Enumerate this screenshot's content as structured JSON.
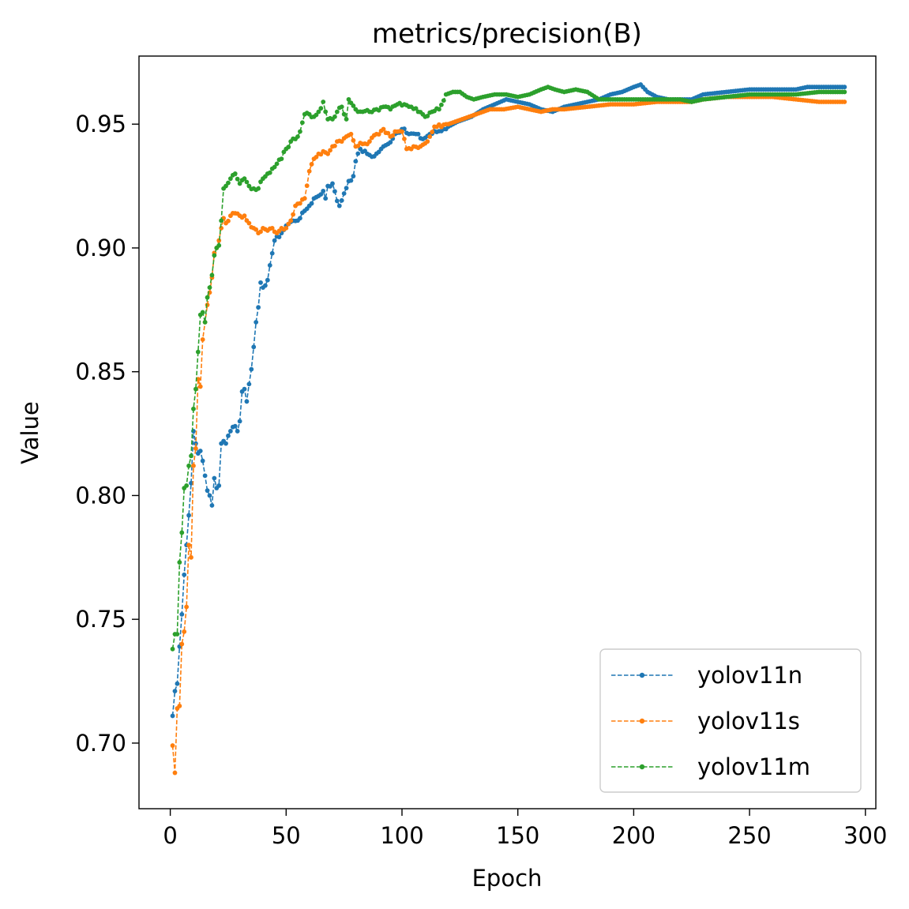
{
  "chart_data": {
    "type": "line",
    "title": "metrics/precision(B)",
    "xlabel": "Epoch",
    "ylabel": "Value",
    "xlim": [
      -13.5,
      304.5
    ],
    "ylim": [
      0.6735,
      0.9775
    ],
    "xticks": [
      0,
      50,
      100,
      150,
      200,
      250,
      300
    ],
    "xtick_labels": [
      "0",
      "50",
      "100",
      "150",
      "200",
      "250",
      "300"
    ],
    "yticks": [
      0.7,
      0.75,
      0.8,
      0.85,
      0.9,
      0.95
    ],
    "ytick_labels": [
      "0.70",
      "0.75",
      "0.80",
      "0.85",
      "0.90",
      "0.95"
    ],
    "grid": false,
    "legend_position": "lower-right",
    "series": [
      {
        "name": "yolov11n",
        "color": "#1f77b4",
        "keypoints": [
          [
            1,
            0.711
          ],
          [
            2,
            0.721
          ],
          [
            3,
            0.724
          ],
          [
            4,
            0.739
          ],
          [
            5,
            0.752
          ],
          [
            6,
            0.768
          ],
          [
            7,
            0.78
          ],
          [
            8,
            0.792
          ],
          [
            9,
            0.805
          ],
          [
            10,
            0.826
          ],
          [
            11,
            0.821
          ],
          [
            12,
            0.817
          ],
          [
            13,
            0.818
          ],
          [
            14,
            0.814
          ],
          [
            15,
            0.808
          ],
          [
            16,
            0.802
          ],
          [
            17,
            0.8
          ],
          [
            18,
            0.796
          ],
          [
            19,
            0.807
          ],
          [
            20,
            0.803
          ],
          [
            21,
            0.804
          ],
          [
            22,
            0.821
          ],
          [
            23,
            0.822
          ],
          [
            24,
            0.821
          ],
          [
            26,
            0.826
          ],
          [
            28,
            0.828
          ],
          [
            29,
            0.826
          ],
          [
            30,
            0.83
          ],
          [
            31,
            0.842
          ],
          [
            32,
            0.843
          ],
          [
            33,
            0.838
          ],
          [
            34,
            0.845
          ],
          [
            35,
            0.851
          ],
          [
            36,
            0.86
          ],
          [
            37,
            0.87
          ],
          [
            38,
            0.876
          ],
          [
            39,
            0.886
          ],
          [
            40,
            0.884
          ],
          [
            42,
            0.887
          ],
          [
            43,
            0.893
          ],
          [
            45,
            0.903
          ],
          [
            48,
            0.906
          ],
          [
            50,
            0.909
          ],
          [
            53,
            0.911
          ],
          [
            56,
            0.912
          ],
          [
            58,
            0.915
          ],
          [
            60,
            0.917
          ],
          [
            62,
            0.92
          ],
          [
            64,
            0.921
          ],
          [
            66,
            0.923
          ],
          [
            67,
            0.92
          ],
          [
            68,
            0.925
          ],
          [
            70,
            0.926
          ],
          [
            72,
            0.919
          ],
          [
            73,
            0.917
          ],
          [
            75,
            0.922
          ],
          [
            77,
            0.927
          ],
          [
            79,
            0.929
          ],
          [
            80,
            0.935
          ],
          [
            82,
            0.94
          ],
          [
            85,
            0.938
          ],
          [
            88,
            0.937
          ],
          [
            91,
            0.94
          ],
          [
            94,
            0.942
          ],
          [
            97,
            0.946
          ],
          [
            100,
            0.948
          ],
          [
            103,
            0.946
          ],
          [
            106,
            0.946
          ],
          [
            109,
            0.944
          ],
          [
            112,
            0.946
          ],
          [
            118,
            0.948
          ],
          [
            124,
            0.951
          ],
          [
            130,
            0.953
          ],
          [
            135,
            0.956
          ],
          [
            140,
            0.958
          ],
          [
            145,
            0.96
          ],
          [
            150,
            0.959
          ],
          [
            155,
            0.958
          ],
          [
            160,
            0.956
          ],
          [
            165,
            0.955
          ],
          [
            170,
            0.957
          ],
          [
            175,
            0.958
          ],
          [
            180,
            0.959
          ],
          [
            185,
            0.96
          ],
          [
            190,
            0.962
          ],
          [
            195,
            0.963
          ],
          [
            200,
            0.965
          ],
          [
            203,
            0.966
          ],
          [
            206,
            0.963
          ],
          [
            210,
            0.961
          ],
          [
            215,
            0.96
          ],
          [
            220,
            0.96
          ],
          [
            225,
            0.96
          ],
          [
            230,
            0.962
          ],
          [
            240,
            0.963
          ],
          [
            250,
            0.964
          ],
          [
            260,
            0.964
          ],
          [
            270,
            0.964
          ],
          [
            275,
            0.965
          ],
          [
            285,
            0.965
          ],
          [
            291,
            0.965
          ]
        ]
      },
      {
        "name": "yolov11s",
        "color": "#ff7f0e",
        "keypoints": [
          [
            1,
            0.699
          ],
          [
            2,
            0.688
          ],
          [
            3,
            0.714
          ],
          [
            4,
            0.715
          ],
          [
            5,
            0.74
          ],
          [
            6,
            0.745
          ],
          [
            7,
            0.755
          ],
          [
            8,
            0.78
          ],
          [
            9,
            0.775
          ],
          [
            10,
            0.812
          ],
          [
            11,
            0.819
          ],
          [
            12,
            0.847
          ],
          [
            13,
            0.844
          ],
          [
            14,
            0.863
          ],
          [
            15,
            0.87
          ],
          [
            16,
            0.877
          ],
          [
            17,
            0.882
          ],
          [
            18,
            0.888
          ],
          [
            19,
            0.898
          ],
          [
            20,
            0.9
          ],
          [
            21,
            0.903
          ],
          [
            22,
            0.908
          ],
          [
            23,
            0.912
          ],
          [
            24,
            0.91
          ],
          [
            26,
            0.913
          ],
          [
            28,
            0.914
          ],
          [
            30,
            0.913
          ],
          [
            32,
            0.913
          ],
          [
            34,
            0.91
          ],
          [
            36,
            0.908
          ],
          [
            38,
            0.906
          ],
          [
            40,
            0.908
          ],
          [
            42,
            0.907
          ],
          [
            44,
            0.908
          ],
          [
            46,
            0.906
          ],
          [
            48,
            0.908
          ],
          [
            50,
            0.908
          ],
          [
            52,
            0.911
          ],
          [
            54,
            0.917
          ],
          [
            56,
            0.918
          ],
          [
            58,
            0.92
          ],
          [
            60,
            0.931
          ],
          [
            62,
            0.936
          ],
          [
            64,
            0.938
          ],
          [
            66,
            0.939
          ],
          [
            68,
            0.938
          ],
          [
            70,
            0.941
          ],
          [
            72,
            0.943
          ],
          [
            74,
            0.943
          ],
          [
            76,
            0.945
          ],
          [
            78,
            0.946
          ],
          [
            80,
            0.941
          ],
          [
            83,
            0.942
          ],
          [
            86,
            0.943
          ],
          [
            89,
            0.946
          ],
          [
            92,
            0.948
          ],
          [
            95,
            0.945
          ],
          [
            98,
            0.947
          ],
          [
            100,
            0.947
          ],
          [
            102,
            0.94
          ],
          [
            105,
            0.941
          ],
          [
            108,
            0.941
          ],
          [
            111,
            0.943
          ],
          [
            114,
            0.949
          ],
          [
            120,
            0.95
          ],
          [
            126,
            0.952
          ],
          [
            132,
            0.954
          ],
          [
            138,
            0.956
          ],
          [
            144,
            0.956
          ],
          [
            150,
            0.957
          ],
          [
            155,
            0.956
          ],
          [
            160,
            0.955
          ],
          [
            165,
            0.956
          ],
          [
            170,
            0.956
          ],
          [
            180,
            0.957
          ],
          [
            190,
            0.958
          ],
          [
            200,
            0.958
          ],
          [
            210,
            0.959
          ],
          [
            220,
            0.959
          ],
          [
            225,
            0.959
          ],
          [
            230,
            0.96
          ],
          [
            240,
            0.961
          ],
          [
            250,
            0.961
          ],
          [
            260,
            0.961
          ],
          [
            270,
            0.96
          ],
          [
            280,
            0.959
          ],
          [
            291,
            0.959
          ]
        ]
      },
      {
        "name": "yolov11m",
        "color": "#2ca02c",
        "keypoints": [
          [
            1,
            0.738
          ],
          [
            2,
            0.744
          ],
          [
            3,
            0.744
          ],
          [
            4,
            0.773
          ],
          [
            5,
            0.785
          ],
          [
            6,
            0.803
          ],
          [
            7,
            0.804
          ],
          [
            8,
            0.812
          ],
          [
            9,
            0.816
          ],
          [
            10,
            0.835
          ],
          [
            11,
            0.843
          ],
          [
            12,
            0.858
          ],
          [
            13,
            0.873
          ],
          [
            14,
            0.874
          ],
          [
            15,
            0.87
          ],
          [
            16,
            0.88
          ],
          [
            17,
            0.884
          ],
          [
            18,
            0.889
          ],
          [
            19,
            0.897
          ],
          [
            20,
            0.9
          ],
          [
            21,
            0.901
          ],
          [
            22,
            0.911
          ],
          [
            23,
            0.924
          ],
          [
            24,
            0.925
          ],
          [
            26,
            0.928
          ],
          [
            28,
            0.93
          ],
          [
            30,
            0.926
          ],
          [
            32,
            0.928
          ],
          [
            34,
            0.925
          ],
          [
            36,
            0.924
          ],
          [
            38,
            0.924
          ],
          [
            40,
            0.928
          ],
          [
            42,
            0.93
          ],
          [
            44,
            0.932
          ],
          [
            46,
            0.934
          ],
          [
            48,
            0.936
          ],
          [
            50,
            0.94
          ],
          [
            52,
            0.943
          ],
          [
            54,
            0.944
          ],
          [
            56,
            0.947
          ],
          [
            58,
            0.954
          ],
          [
            60,
            0.954
          ],
          [
            62,
            0.953
          ],
          [
            64,
            0.955
          ],
          [
            66,
            0.959
          ],
          [
            68,
            0.952
          ],
          [
            70,
            0.952
          ],
          [
            72,
            0.955
          ],
          [
            74,
            0.957
          ],
          [
            76,
            0.952
          ],
          [
            77,
            0.96
          ],
          [
            80,
            0.956
          ],
          [
            83,
            0.955
          ],
          [
            86,
            0.955
          ],
          [
            89,
            0.956
          ],
          [
            92,
            0.957
          ],
          [
            95,
            0.956
          ],
          [
            98,
            0.958
          ],
          [
            101,
            0.958
          ],
          [
            104,
            0.957
          ],
          [
            107,
            0.955
          ],
          [
            110,
            0.953
          ],
          [
            113,
            0.955
          ],
          [
            116,
            0.956
          ],
          [
            119,
            0.962
          ],
          [
            122,
            0.963
          ],
          [
            125,
            0.963
          ],
          [
            128,
            0.961
          ],
          [
            131,
            0.96
          ],
          [
            135,
            0.961
          ],
          [
            140,
            0.962
          ],
          [
            145,
            0.962
          ],
          [
            150,
            0.961
          ],
          [
            155,
            0.962
          ],
          [
            160,
            0.964
          ],
          [
            163,
            0.965
          ],
          [
            166,
            0.964
          ],
          [
            170,
            0.963
          ],
          [
            175,
            0.964
          ],
          [
            180,
            0.963
          ],
          [
            185,
            0.96
          ],
          [
            190,
            0.96
          ],
          [
            200,
            0.96
          ],
          [
            210,
            0.96
          ],
          [
            220,
            0.96
          ],
          [
            225,
            0.959
          ],
          [
            230,
            0.96
          ],
          [
            240,
            0.961
          ],
          [
            250,
            0.962
          ],
          [
            260,
            0.962
          ],
          [
            270,
            0.962
          ],
          [
            280,
            0.963
          ],
          [
            291,
            0.963
          ]
        ]
      }
    ]
  }
}
